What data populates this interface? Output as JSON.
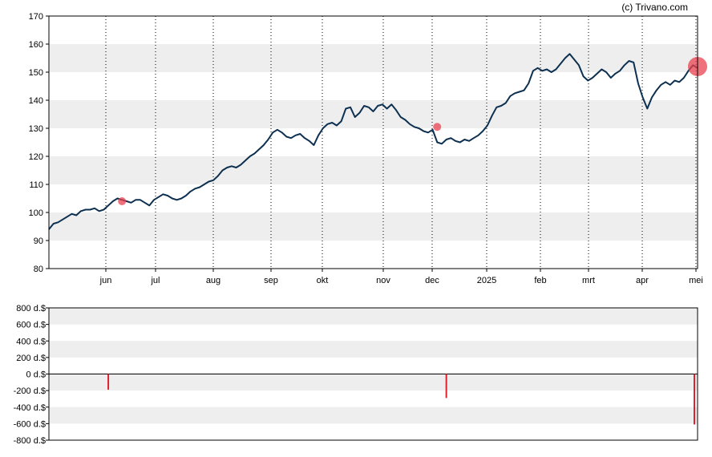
{
  "copyright": "(c) Trivano.com",
  "colors": {
    "price_line": "#0d3050",
    "band": "#eeeeee",
    "marker": "#e8424f",
    "bar": "#e0202f",
    "axis": "#000000"
  },
  "chart_data": [
    {
      "type": "line",
      "title": "",
      "xlabel": "",
      "ylabel": "",
      "ylim": [
        80,
        170
      ],
      "yticks": [
        "80",
        "90",
        "100",
        "110",
        "120",
        "130",
        "140",
        "150",
        "160",
        "170"
      ],
      "grid": "horizontal bands, vertical dotted month lines",
      "x_months": [
        "jun",
        "jul",
        "aug",
        "sep",
        "okt",
        "nov",
        "dec",
        "2025",
        "feb",
        "mrt",
        "apr",
        "mei"
      ],
      "series": [
        {
          "name": "",
          "points": [
            [
              0,
              94.0
            ],
            [
              1,
              96.0
            ],
            [
              2,
              96.5
            ],
            [
              3,
              97.5
            ],
            [
              4,
              98.5
            ],
            [
              5,
              99.5
            ],
            [
              6,
              99.0
            ],
            [
              7,
              100.5
            ],
            [
              8,
              101.0
            ],
            [
              9,
              101.0
            ],
            [
              10,
              101.5
            ],
            [
              11,
              100.5
            ],
            [
              12,
              101.0
            ],
            [
              13,
              102.5
            ],
            [
              14,
              104.0
            ],
            [
              15,
              105.0
            ],
            [
              16,
              104.5
            ],
            [
              17,
              104.0
            ],
            [
              18,
              103.5
            ],
            [
              19,
              104.5
            ],
            [
              20,
              104.5
            ],
            [
              21,
              103.5
            ],
            [
              22,
              102.5
            ],
            [
              23,
              104.5
            ],
            [
              24,
              105.5
            ],
            [
              25,
              106.5
            ],
            [
              26,
              106.0
            ],
            [
              27,
              105.0
            ],
            [
              28,
              104.5
            ],
            [
              29,
              105.0
            ],
            [
              30,
              106.0
            ],
            [
              31,
              107.5
            ],
            [
              32,
              108.5
            ],
            [
              33,
              109.0
            ],
            [
              34,
              110.0
            ],
            [
              35,
              111.0
            ],
            [
              36,
              111.5
            ],
            [
              37,
              113.0
            ],
            [
              38,
              115.0
            ],
            [
              39,
              116.0
            ],
            [
              40,
              116.5
            ],
            [
              41,
              116.0
            ],
            [
              42,
              117.0
            ],
            [
              43,
              118.5
            ],
            [
              44,
              120.0
            ],
            [
              45,
              121.0
            ],
            [
              46,
              122.5
            ],
            [
              47,
              124.0
            ],
            [
              48,
              126.0
            ],
            [
              49,
              128.5
            ],
            [
              50,
              129.5
            ],
            [
              51,
              128.5
            ],
            [
              52,
              127.0
            ],
            [
              53,
              126.5
            ],
            [
              54,
              127.5
            ],
            [
              55,
              128.0
            ],
            [
              56,
              126.5
            ],
            [
              57,
              125.5
            ],
            [
              58,
              124.0
            ],
            [
              59,
              127.5
            ],
            [
              60,
              130.0
            ],
            [
              61,
              131.5
            ],
            [
              62,
              132.0
            ],
            [
              63,
              131.0
            ],
            [
              64,
              132.5
            ],
            [
              65,
              137.0
            ],
            [
              66,
              137.5
            ],
            [
              67,
              134.0
            ],
            [
              68,
              135.5
            ],
            [
              69,
              138.0
            ],
            [
              70,
              137.5
            ],
            [
              71,
              136.0
            ],
            [
              72,
              138.0
            ],
            [
              73,
              138.5
            ],
            [
              74,
              137.0
            ],
            [
              75,
              138.5
            ],
            [
              76,
              136.5
            ],
            [
              77,
              134.0
            ],
            [
              78,
              133.0
            ],
            [
              79,
              131.5
            ],
            [
              80,
              130.5
            ],
            [
              81,
              130.0
            ],
            [
              82,
              129.0
            ],
            [
              83,
              128.5
            ],
            [
              84,
              129.5
            ],
            [
              85,
              125.0
            ],
            [
              86,
              124.5
            ],
            [
              87,
              126.0
            ],
            [
              88,
              126.5
            ],
            [
              89,
              125.5
            ],
            [
              90,
              125.0
            ],
            [
              91,
              126.0
            ],
            [
              92,
              125.5
            ],
            [
              93,
              126.5
            ],
            [
              94,
              127.5
            ],
            [
              95,
              129.0
            ],
            [
              96,
              131.0
            ],
            [
              97,
              134.5
            ],
            [
              98,
              137.5
            ],
            [
              99,
              138.0
            ],
            [
              100,
              139.0
            ],
            [
              101,
              141.5
            ],
            [
              102,
              142.5
            ],
            [
              103,
              143.0
            ],
            [
              104,
              143.5
            ],
            [
              105,
              146.0
            ],
            [
              106,
              150.5
            ],
            [
              107,
              151.5
            ],
            [
              108,
              150.5
            ],
            [
              109,
              151.0
            ],
            [
              110,
              150.0
            ],
            [
              111,
              151.0
            ],
            [
              112,
              153.0
            ],
            [
              113,
              155.0
            ],
            [
              114,
              156.5
            ],
            [
              115,
              154.5
            ],
            [
              116,
              152.5
            ],
            [
              117,
              148.5
            ],
            [
              118,
              147.0
            ],
            [
              119,
              148.0
            ],
            [
              120,
              149.5
            ],
            [
              121,
              151.0
            ],
            [
              122,
              150.0
            ],
            [
              123,
              148.0
            ],
            [
              124,
              149.5
            ],
            [
              125,
              150.5
            ],
            [
              126,
              152.5
            ],
            [
              127,
              154.0
            ],
            [
              128,
              153.5
            ],
            [
              129,
              146.0
            ],
            [
              130,
              141.0
            ],
            [
              131,
              137.0
            ],
            [
              132,
              141.0
            ],
            [
              133,
              143.5
            ],
            [
              134,
              145.5
            ],
            [
              135,
              146.5
            ],
            [
              136,
              145.5
            ],
            [
              137,
              147.0
            ],
            [
              138,
              146.5
            ],
            [
              139,
              148.0
            ],
            [
              140,
              150.5
            ],
            [
              141,
              152.5
            ],
            [
              142,
              151.5
            ]
          ]
        }
      ],
      "markers": [
        {
          "x": 16,
          "y": 104.0,
          "size": "small"
        },
        {
          "x": 85,
          "y": 130.5,
          "size": "small"
        },
        {
          "x": 142,
          "y": 152.0,
          "size": "large"
        }
      ]
    },
    {
      "type": "bar",
      "title": "",
      "xlabel": "",
      "ylabel": "",
      "ylim": [
        -800,
        800
      ],
      "yticks": [
        "800 d.$",
        "600 d.$",
        "400 d.$",
        "200 d.$",
        "0 d.$",
        "-200 d.$",
        "-400 d.$",
        "-600 d.$",
        "-800 d.$"
      ],
      "bars": [
        {
          "x": 13,
          "value": -190
        },
        {
          "x": 87,
          "value": -290
        },
        {
          "x": 142,
          "value": -610
        }
      ]
    }
  ]
}
